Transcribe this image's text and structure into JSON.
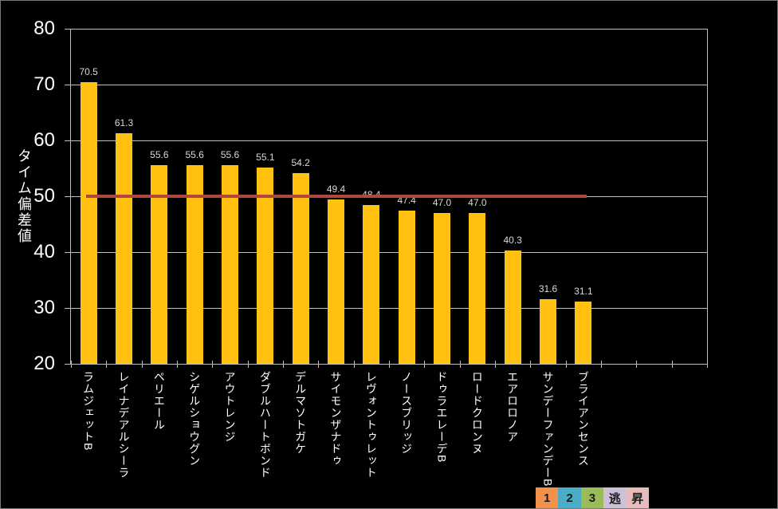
{
  "chart_data": {
    "type": "bar",
    "title": "",
    "xlabel": "",
    "ylabel": "タイム偏差値",
    "categories": [
      "ラムジェットB",
      "レイナデアルシーラ",
      "ペリエール",
      "シゲルショウグン",
      "アウトレンジ",
      "ダブルハートボンド",
      "デルマソトガケ",
      "サイモンザナドゥ",
      "レヴォントゥレット",
      "ノースブリッジ",
      "ドゥラエレーデB",
      "ロードクロンヌ",
      "エアロロノア",
      "サンデーファンデーB",
      "ブライアンセンス"
    ],
    "values": [
      70.5,
      61.3,
      55.6,
      55.6,
      55.6,
      55.1,
      54.2,
      49.4,
      48.4,
      47.4,
      47.0,
      47.0,
      40.3,
      31.6,
      31.1
    ],
    "value_labels": [
      "70.5",
      "61.3",
      "55.6",
      "55.6",
      "55.6",
      "55.1",
      "54.2",
      "49.4",
      "48.4",
      "47.4",
      "47.0",
      "47.0",
      "40.3",
      "31.6",
      "31.1"
    ],
    "ylim": [
      20,
      80
    ],
    "yticks": [
      20,
      30,
      40,
      50,
      60,
      70,
      80
    ],
    "x_slots": 18,
    "grid": true,
    "legend_position": "bottom-right",
    "reference_line": {
      "value": 50,
      "from_category_index": 0,
      "to_category_index": 14
    },
    "colors": {
      "background": "#000000",
      "bar": "#FFC010",
      "grid": "#C0C0C0",
      "axis": "#C0C0C0",
      "tick_label": "#FFFFFF",
      "value_label": "#D9D9D9",
      "reference_line": "#B2473E"
    },
    "legend": {
      "items": [
        {
          "label": "1",
          "color": "#F0924C"
        },
        {
          "label": "2",
          "color": "#4BACC6"
        },
        {
          "label": "3",
          "color": "#9BBB59"
        },
        {
          "label": "逃",
          "color": "#CCC0DA"
        },
        {
          "label": "昇",
          "color": "#E8BCBB"
        }
      ]
    }
  }
}
